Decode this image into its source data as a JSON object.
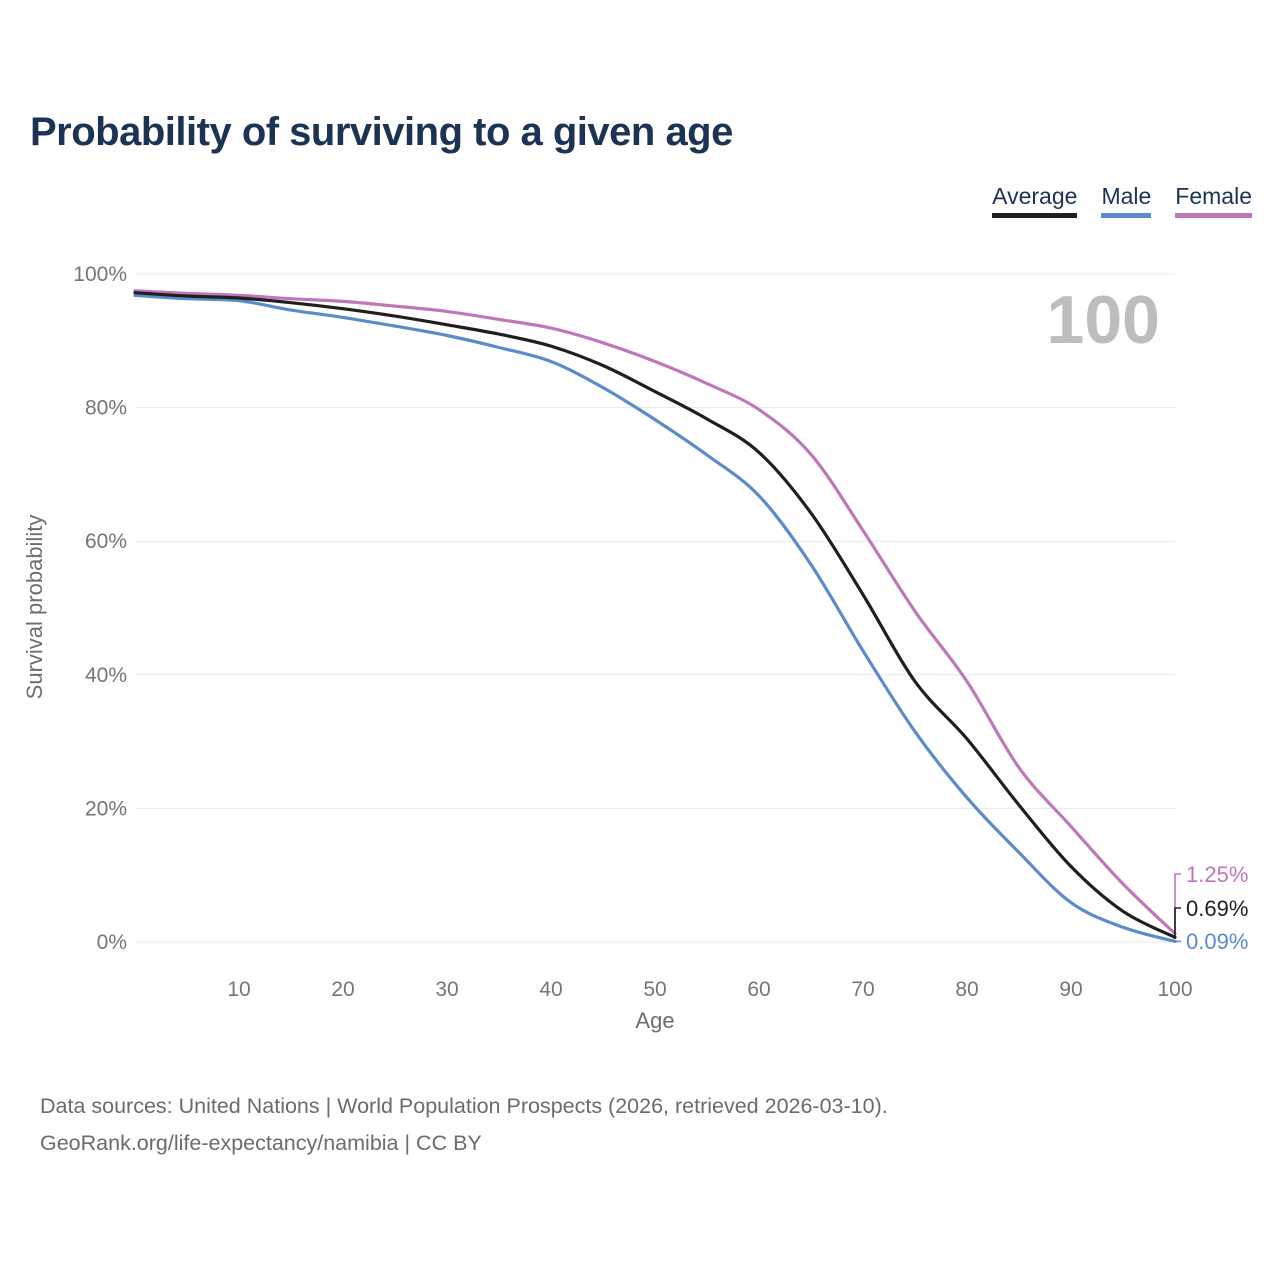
{
  "title": "Probability of surviving to a given age",
  "legend": [
    {
      "label": "Average",
      "color": "#1f1f1f"
    },
    {
      "label": "Male",
      "color": "#5b8bc9"
    },
    {
      "label": "Female",
      "color": "#bf77ba"
    }
  ],
  "big_age_label": "100",
  "axes": {
    "x": {
      "label": "Age",
      "min": 0,
      "max": 100,
      "ticks": [
        10,
        20,
        30,
        40,
        50,
        60,
        70,
        80,
        90,
        100
      ]
    },
    "y": {
      "label": "Survival probability",
      "min": 0,
      "max": 100,
      "ticks": [
        0,
        20,
        40,
        60,
        80,
        100
      ],
      "tick_suffix": "%"
    }
  },
  "end_labels": [
    {
      "text": "1.25%",
      "series": "Female"
    },
    {
      "text": "0.69%",
      "series": "Average"
    },
    {
      "text": "0.09%",
      "series": "Male"
    }
  ],
  "sources": {
    "line1": "Data sources: United Nations | World Population Prospects (2026, retrieved 2026-03-10).",
    "line2": "GeoRank.org/life-expectancy/namibia | CC BY"
  },
  "colors": {
    "title_navy": "#1d3354",
    "tick_gray": "#757575",
    "axis_label_gray": "#6e6e6e",
    "grid_gray": "#e8e8e8",
    "big_label_gray": "#bdbdbd",
    "average_black": "#1f1f1f",
    "male_blue": "#5b8bc9",
    "female_pink": "#bf77ba"
  },
  "chart_data": {
    "type": "line",
    "title": "Probability of surviving to a given age",
    "xlabel": "Age",
    "ylabel": "Survival probability",
    "xlim": [
      0,
      100
    ],
    "ylim": [
      0,
      100
    ],
    "grid": "horizontal",
    "legend_position": "top-right",
    "x": [
      0,
      5,
      10,
      15,
      20,
      25,
      30,
      35,
      40,
      45,
      50,
      55,
      60,
      65,
      70,
      75,
      80,
      85,
      90,
      95,
      100
    ],
    "series": [
      {
        "name": "Female",
        "color": "#bf77ba",
        "values": [
          97.5,
          97.1,
          96.8,
          96.3,
          95.9,
          95.2,
          94.4,
          93.2,
          91.9,
          89.7,
          86.9,
          83.6,
          79.7,
          73.0,
          61.6,
          49.5,
          39.0,
          26.1,
          17.3,
          8.7,
          1.25
        ]
      },
      {
        "name": "Male",
        "color": "#5b8bc9",
        "values": [
          96.8,
          96.3,
          96.0,
          94.6,
          93.5,
          92.2,
          90.8,
          89.0,
          86.9,
          83.0,
          78.2,
          72.9,
          66.8,
          56.5,
          43.6,
          31.5,
          21.6,
          13.4,
          5.9,
          2.2,
          0.09
        ]
      },
      {
        "name": "Average",
        "color": "#1f1f1f",
        "values": [
          97.2,
          96.7,
          96.4,
          95.7,
          94.8,
          93.7,
          92.4,
          91.0,
          89.2,
          86.3,
          82.4,
          78.3,
          73.3,
          64.2,
          52.0,
          39.0,
          30.4,
          20.5,
          11.3,
          4.6,
          0.69
        ]
      }
    ]
  }
}
